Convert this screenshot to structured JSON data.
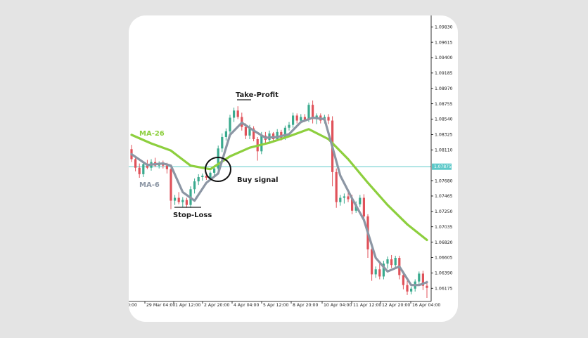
{
  "chart_data": {
    "type": "candlestick",
    "xlabels": [
      "0:00",
      "29 Mar 04:00",
      "1 Apr 12:00",
      "2 Apr 20:00",
      "4 Apr 04:00",
      "5 Apr 12:00",
      "8 Apr 20:00",
      "10 Apr 04:00",
      "11 Apr 12:00",
      "12 Apr 20:00",
      "16 Apr 04:00"
    ],
    "yticks": [
      1.0983,
      1.09615,
      1.094,
      1.09185,
      1.0897,
      1.08755,
      1.0854,
      1.08325,
      1.0811,
      1.0768,
      1.07465,
      1.0725,
      1.07035,
      1.0682,
      1.06605,
      1.0639,
      1.06175
    ],
    "ytick_labels": [
      "1.09830",
      "1.09615",
      "1.09400",
      "1.09185",
      "1.08970",
      "1.08755",
      "1.08540",
      "1.08325",
      "1.08110",
      "1.07680",
      "1.07465",
      "1.07250",
      "1.07035",
      "1.06820",
      "1.06605",
      "1.06390",
      "1.06175"
    ],
    "ylim": [
      1.0604,
      1.0995
    ],
    "current_price": 1.07875,
    "current_price_label": "1.07875",
    "grid": false,
    "candles": [
      {
        "o": 1.0812,
        "h": 1.0818,
        "l": 1.0794,
        "c": 1.0798
      },
      {
        "o": 1.0798,
        "h": 1.0803,
        "l": 1.0781,
        "c": 1.0786
      },
      {
        "o": 1.0786,
        "h": 1.0792,
        "l": 1.0772,
        "c": 1.0777
      },
      {
        "o": 1.0777,
        "h": 1.0795,
        "l": 1.0773,
        "c": 1.0791
      },
      {
        "o": 1.0791,
        "h": 1.0797,
        "l": 1.0784,
        "c": 1.0786
      },
      {
        "o": 1.0786,
        "h": 1.0798,
        "l": 1.0782,
        "c": 1.0794
      },
      {
        "o": 1.0794,
        "h": 1.08,
        "l": 1.0787,
        "c": 1.0789
      },
      {
        "o": 1.0789,
        "h": 1.0795,
        "l": 1.0785,
        "c": 1.0792
      },
      {
        "o": 1.0792,
        "h": 1.0796,
        "l": 1.0785,
        "c": 1.0789
      },
      {
        "o": 1.0789,
        "h": 1.0793,
        "l": 1.0778,
        "c": 1.0784
      },
      {
        "o": 1.0784,
        "h": 1.0788,
        "l": 1.0728,
        "c": 1.074
      },
      {
        "o": 1.074,
        "h": 1.0748,
        "l": 1.0734,
        "c": 1.0744
      },
      {
        "o": 1.0744,
        "h": 1.0752,
        "l": 1.0735,
        "c": 1.0738
      },
      {
        "o": 1.0738,
        "h": 1.0745,
        "l": 1.0731,
        "c": 1.0741
      },
      {
        "o": 1.0741,
        "h": 1.0744,
        "l": 1.073,
        "c": 1.0734
      },
      {
        "o": 1.0734,
        "h": 1.076,
        "l": 1.073,
        "c": 1.0756
      },
      {
        "o": 1.0756,
        "h": 1.0771,
        "l": 1.075,
        "c": 1.0767
      },
      {
        "o": 1.0767,
        "h": 1.0777,
        "l": 1.0762,
        "c": 1.0773
      },
      {
        "o": 1.0773,
        "h": 1.0778,
        "l": 1.0768,
        "c": 1.0775
      },
      {
        "o": 1.0775,
        "h": 1.0779,
        "l": 1.0769,
        "c": 1.0772
      },
      {
        "o": 1.0772,
        "h": 1.0781,
        "l": 1.0769,
        "c": 1.0779
      },
      {
        "o": 1.0779,
        "h": 1.0788,
        "l": 1.0775,
        "c": 1.0785
      },
      {
        "o": 1.0785,
        "h": 1.0817,
        "l": 1.0782,
        "c": 1.0813
      },
      {
        "o": 1.0813,
        "h": 1.0834,
        "l": 1.0808,
        "c": 1.0829
      },
      {
        "o": 1.0829,
        "h": 1.0841,
        "l": 1.0824,
        "c": 1.0837
      },
      {
        "o": 1.0837,
        "h": 1.086,
        "l": 1.0833,
        "c": 1.0856
      },
      {
        "o": 1.0856,
        "h": 1.087,
        "l": 1.085,
        "c": 1.0866
      },
      {
        "o": 1.0866,
        "h": 1.0872,
        "l": 1.0854,
        "c": 1.0857
      },
      {
        "o": 1.0857,
        "h": 1.0863,
        "l": 1.0838,
        "c": 1.0843
      },
      {
        "o": 1.0843,
        "h": 1.0848,
        "l": 1.0826,
        "c": 1.0831
      },
      {
        "o": 1.0831,
        "h": 1.0846,
        "l": 1.0826,
        "c": 1.0841
      },
      {
        "o": 1.0841,
        "h": 1.0844,
        "l": 1.0823,
        "c": 1.0826
      },
      {
        "o": 1.0826,
        "h": 1.0829,
        "l": 1.0796,
        "c": 1.0809
      },
      {
        "o": 1.0809,
        "h": 1.0836,
        "l": 1.0805,
        "c": 1.0831
      },
      {
        "o": 1.0831,
        "h": 1.0836,
        "l": 1.082,
        "c": 1.0825
      },
      {
        "o": 1.0825,
        "h": 1.0838,
        "l": 1.082,
        "c": 1.0834
      },
      {
        "o": 1.0834,
        "h": 1.0836,
        "l": 1.0822,
        "c": 1.0826
      },
      {
        "o": 1.0826,
        "h": 1.084,
        "l": 1.0823,
        "c": 1.0836
      },
      {
        "o": 1.0836,
        "h": 1.0839,
        "l": 1.0824,
        "c": 1.0828
      },
      {
        "o": 1.0828,
        "h": 1.0845,
        "l": 1.0825,
        "c": 1.0842
      },
      {
        "o": 1.0842,
        "h": 1.085,
        "l": 1.0838,
        "c": 1.0846
      },
      {
        "o": 1.0846,
        "h": 1.0863,
        "l": 1.0842,
        "c": 1.0859
      },
      {
        "o": 1.0859,
        "h": 1.0862,
        "l": 1.0848,
        "c": 1.0852
      },
      {
        "o": 1.0852,
        "h": 1.0861,
        "l": 1.0848,
        "c": 1.0857
      },
      {
        "o": 1.0857,
        "h": 1.0861,
        "l": 1.085,
        "c": 1.0853
      },
      {
        "o": 1.0853,
        "h": 1.0877,
        "l": 1.085,
        "c": 1.0874
      },
      {
        "o": 1.0874,
        "h": 1.088,
        "l": 1.0848,
        "c": 1.0855
      },
      {
        "o": 1.0855,
        "h": 1.0862,
        "l": 1.0847,
        "c": 1.0859
      },
      {
        "o": 1.0859,
        "h": 1.0862,
        "l": 1.0848,
        "c": 1.0852
      },
      {
        "o": 1.0852,
        "h": 1.086,
        "l": 1.0848,
        "c": 1.0857
      },
      {
        "o": 1.0857,
        "h": 1.0861,
        "l": 1.0847,
        "c": 1.0852
      },
      {
        "o": 1.0852,
        "h": 1.0858,
        "l": 1.076,
        "c": 1.078
      },
      {
        "o": 1.078,
        "h": 1.0785,
        "l": 1.073,
        "c": 1.0738
      },
      {
        "o": 1.0738,
        "h": 1.0748,
        "l": 1.0733,
        "c": 1.0744
      },
      {
        "o": 1.0744,
        "h": 1.075,
        "l": 1.0736,
        "c": 1.0746
      },
      {
        "o": 1.0746,
        "h": 1.0751,
        "l": 1.0738,
        "c": 1.0742
      },
      {
        "o": 1.0742,
        "h": 1.0748,
        "l": 1.0721,
        "c": 1.0726
      },
      {
        "o": 1.0726,
        "h": 1.0739,
        "l": 1.0723,
        "c": 1.0735
      },
      {
        "o": 1.0735,
        "h": 1.0748,
        "l": 1.0731,
        "c": 1.0744
      },
      {
        "o": 1.0744,
        "h": 1.0749,
        "l": 1.0711,
        "c": 1.0718
      },
      {
        "o": 1.0718,
        "h": 1.0721,
        "l": 1.066,
        "c": 1.0672
      },
      {
        "o": 1.0672,
        "h": 1.0675,
        "l": 1.0628,
        "c": 1.0637
      },
      {
        "o": 1.0637,
        "h": 1.0648,
        "l": 1.0632,
        "c": 1.0644
      },
      {
        "o": 1.0644,
        "h": 1.0652,
        "l": 1.063,
        "c": 1.0634
      },
      {
        "o": 1.0634,
        "h": 1.0656,
        "l": 1.063,
        "c": 1.0652
      },
      {
        "o": 1.0652,
        "h": 1.0662,
        "l": 1.0645,
        "c": 1.0658
      },
      {
        "o": 1.0658,
        "h": 1.0664,
        "l": 1.0646,
        "c": 1.065
      },
      {
        "o": 1.065,
        "h": 1.0663,
        "l": 1.0646,
        "c": 1.066
      },
      {
        "o": 1.066,
        "h": 1.0663,
        "l": 1.063,
        "c": 1.0636
      },
      {
        "o": 1.0636,
        "h": 1.0642,
        "l": 1.0616,
        "c": 1.0622
      },
      {
        "o": 1.0622,
        "h": 1.0628,
        "l": 1.0608,
        "c": 1.0613
      },
      {
        "o": 1.0613,
        "h": 1.062,
        "l": 1.0609,
        "c": 1.0617
      },
      {
        "o": 1.0617,
        "h": 1.063,
        "l": 1.0613,
        "c": 1.0627
      },
      {
        "o": 1.0627,
        "h": 1.0641,
        "l": 1.0623,
        "c": 1.0638
      },
      {
        "o": 1.0638,
        "h": 1.0642,
        "l": 1.0615,
        "c": 1.0621
      },
      {
        "o": 1.0621,
        "h": 1.0628,
        "l": 1.0604,
        "c": 1.0618
      }
    ],
    "series": [
      {
        "name": "MA-26",
        "color": "#8dcf3e",
        "x": [
          0,
          5,
          10,
          15,
          20,
          25,
          30,
          35,
          40,
          45,
          50,
          55,
          60,
          65,
          70,
          75
        ],
        "values": [
          1.0832,
          1.082,
          1.081,
          1.0789,
          1.0784,
          1.0802,
          1.0814,
          1.0821,
          1.083,
          1.084,
          1.0826,
          1.0798,
          1.0765,
          1.0734,
          1.0707,
          1.0685
        ]
      },
      {
        "name": "MA-6",
        "color": "#8c96a4",
        "x": [
          0,
          4,
          8,
          10,
          13,
          16,
          19,
          22,
          25,
          28,
          31,
          34,
          37,
          40,
          43,
          46,
          49,
          51,
          53,
          56,
          59,
          62,
          65,
          68,
          71,
          73,
          75
        ],
        "values": [
          1.0805,
          1.079,
          1.0792,
          1.0789,
          1.0752,
          1.074,
          1.0765,
          1.0778,
          1.0832,
          1.0849,
          1.0838,
          1.0828,
          1.0829,
          1.0833,
          1.085,
          1.0856,
          1.0854,
          1.0815,
          1.0775,
          1.0743,
          1.0713,
          1.066,
          1.0641,
          1.0648,
          1.0622,
          1.0622,
          1.0626
        ]
      }
    ],
    "annotations": {
      "ma26": "MA-26",
      "ma6": "MA-6",
      "take_profit": "Take-Profit",
      "stop_loss": "Stop-Loss",
      "buy_signal": "Buy signal"
    },
    "colors": {
      "up": "#3aaa8e",
      "down": "#e0525a",
      "ma26": "#8dcf3e",
      "ma6": "#8c96a4",
      "price_line": "#5ec9c9"
    }
  }
}
